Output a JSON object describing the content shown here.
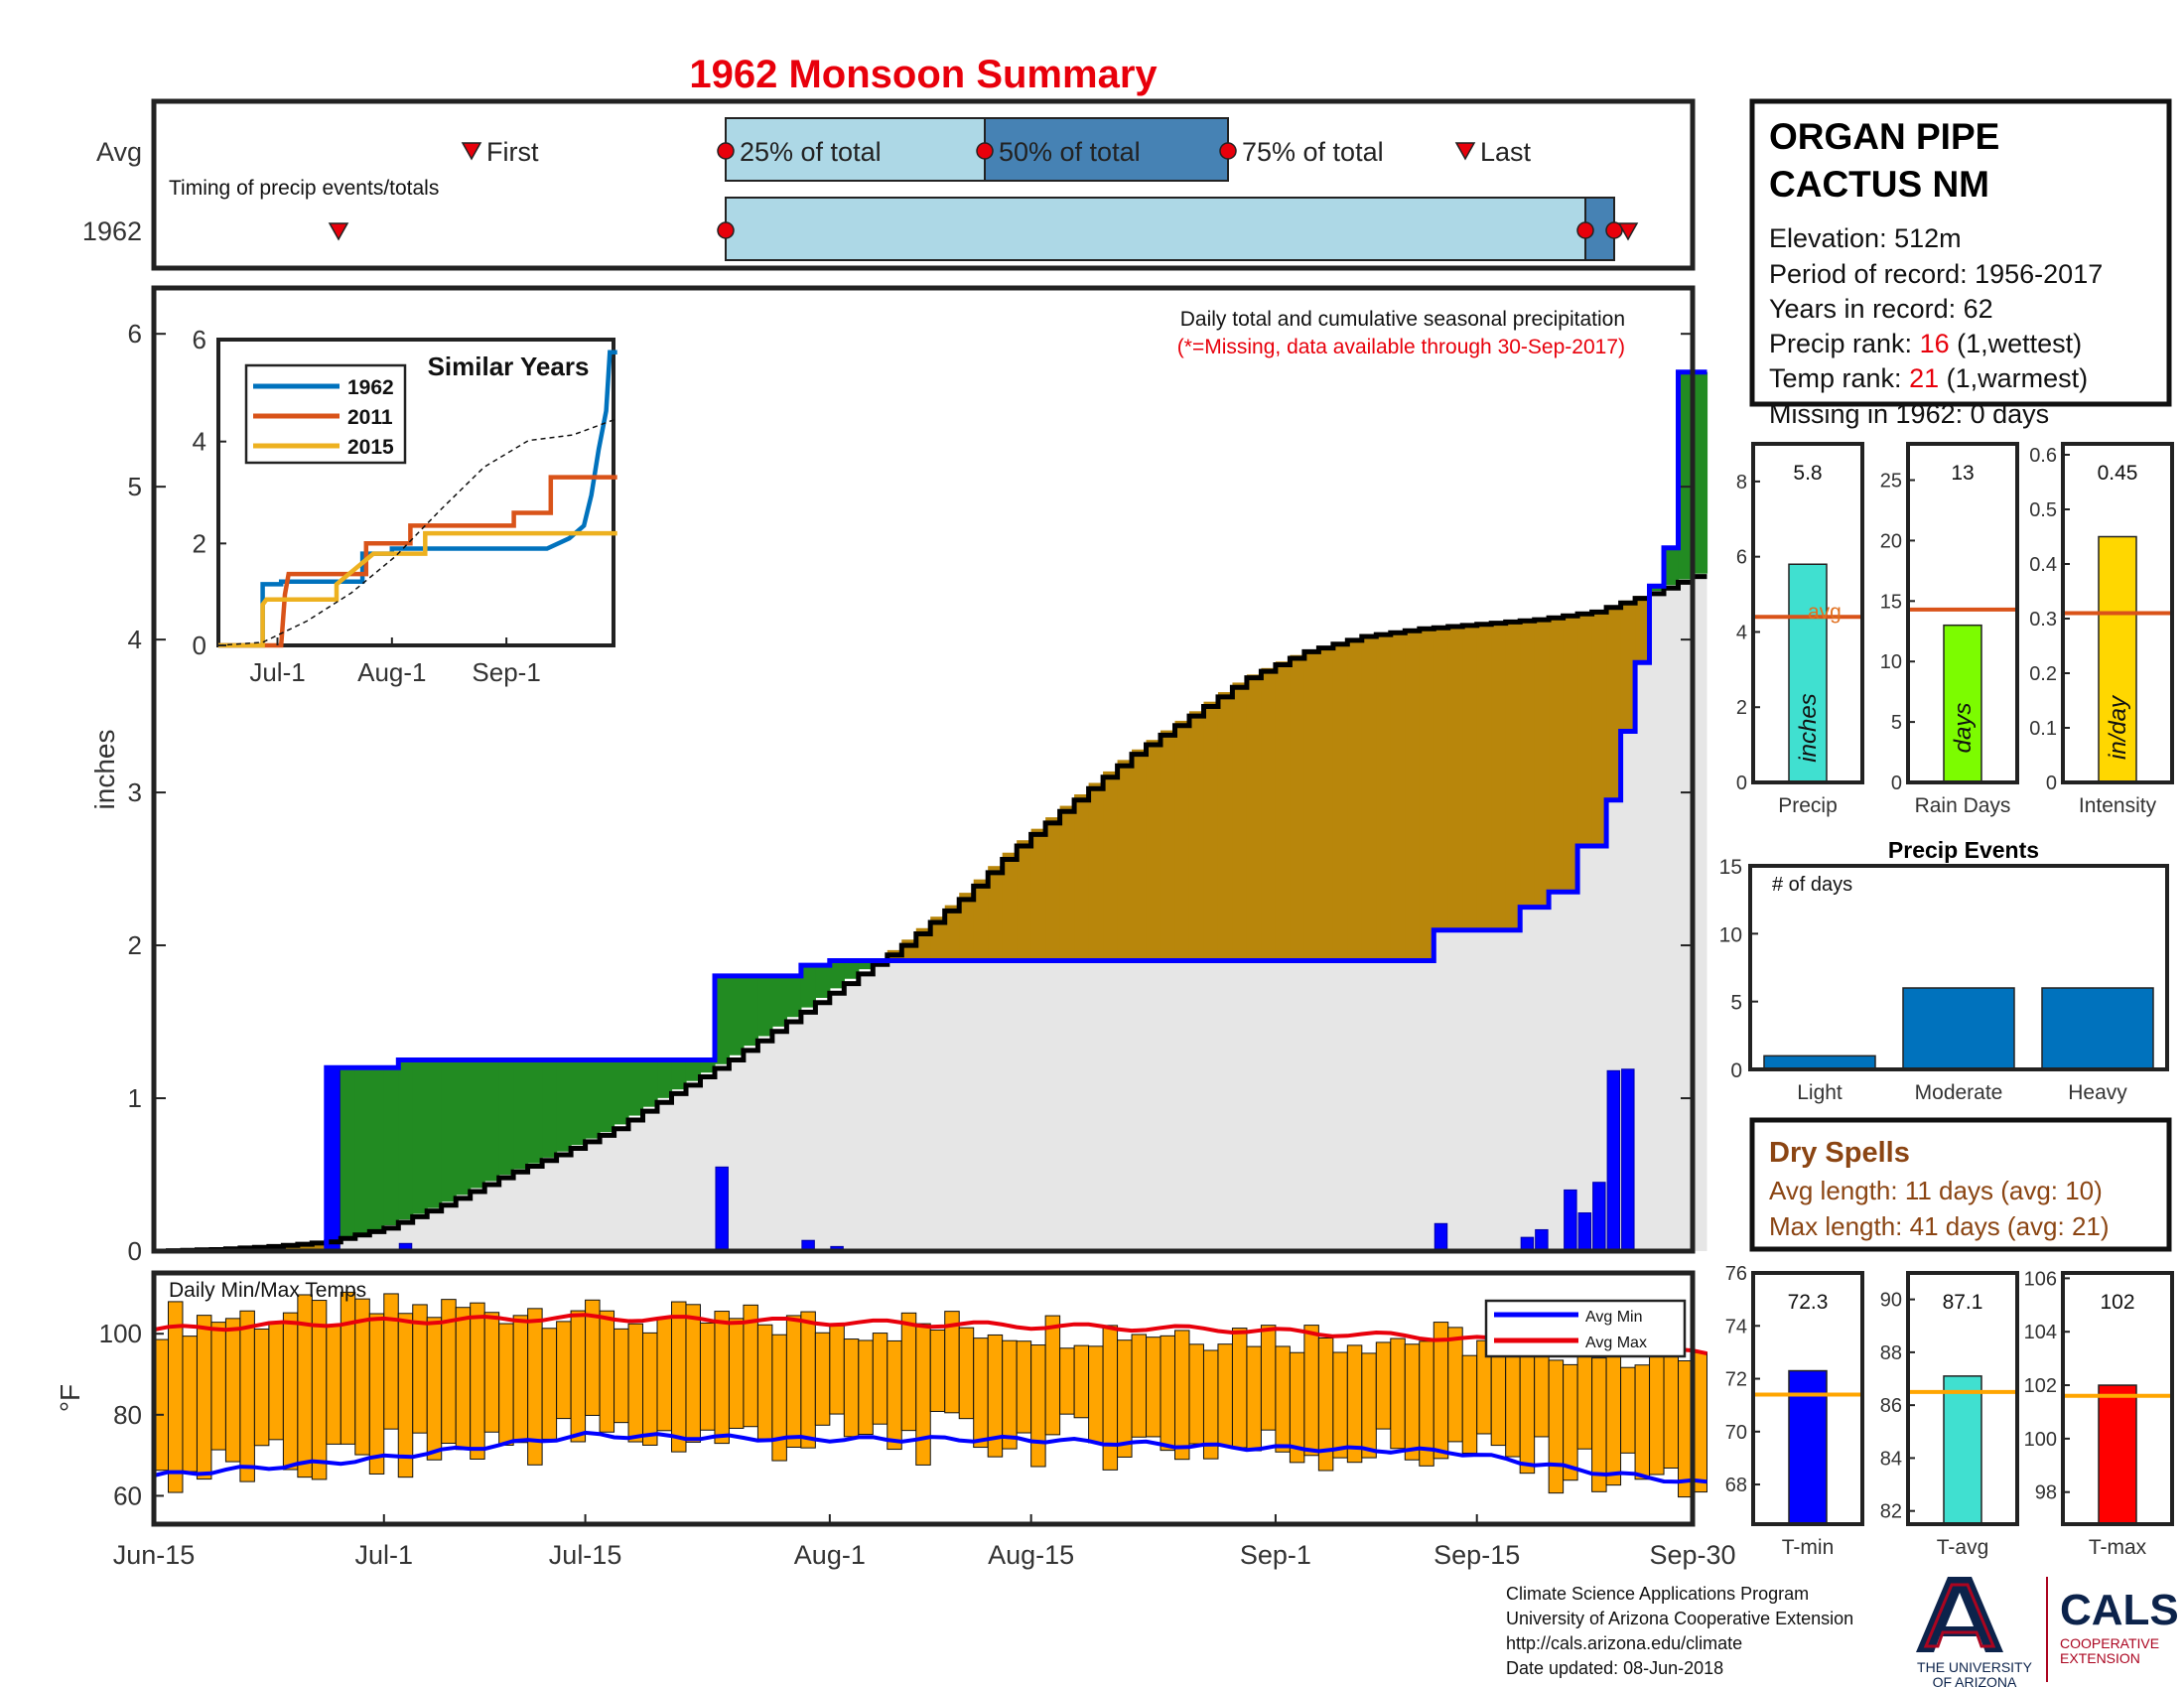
{
  "title": "1962 Monsoon Summary",
  "station": {
    "name_line1": "ORGAN PIPE",
    "name_line2": "CACTUS NM",
    "elevation": "Elevation: 512m",
    "period": "Period of record: 1956-2017",
    "years": "Years in record: 62",
    "precip_rank_label": "Precip rank: ",
    "precip_rank_value": "16",
    "precip_rank_note": " (1,wettest)",
    "temp_rank_label": "Temp rank: ",
    "temp_rank_value": "21",
    "temp_rank_note": " (1,warmest)",
    "missing": "Missing in 1962: 0 days"
  },
  "timing": {
    "row_avg": "Avg",
    "row_year": "1962",
    "caption": "Timing of precip events/totals",
    "first": "First",
    "p25": "25% of total",
    "p50": "50% of total",
    "p75": "75% of total",
    "last": "Last"
  },
  "main": {
    "ylabel": "inches",
    "note1": "Daily total and cumulative seasonal precipitation",
    "note2": "(*=Missing, data available through 30-Sep-2017)"
  },
  "inset": {
    "title": "Similar Years",
    "legend": [
      "1962",
      "2011",
      "2015"
    ]
  },
  "temps": {
    "title": "Daily Min/Max Temps",
    "ylabel": "°F",
    "legend_min": "Avg Min",
    "legend_max": "Avg Max"
  },
  "bars": {
    "precip": {
      "value_label": "5.8",
      "inner": "inches",
      "xlabel": "Precip",
      "avg_label": "avg"
    },
    "raindays": {
      "value_label": "13",
      "inner": "days",
      "xlabel": "Rain Days"
    },
    "intensity": {
      "value_label": "0.45",
      "inner": "in/day",
      "xlabel": "Intensity"
    }
  },
  "events": {
    "title": "Precip Events",
    "ylabel": "# of days"
  },
  "dry": {
    "title": "Dry Spells",
    "avg": "Avg length: 11 days (avg: 10)",
    "max": "Max length: 41 days (avg: 21)"
  },
  "tbars": {
    "tmin": {
      "value_label": "72.3",
      "xlabel": "T-min"
    },
    "tavg": {
      "value_label": "87.1",
      "xlabel": "T-avg"
    },
    "tmax": {
      "value_label": "102",
      "xlabel": "T-max"
    }
  },
  "footer": {
    "line1": "Climate Science Applications Program",
    "line2": "University of Arizona Cooperative Extension",
    "line3": "http://cals.arizona.edu/climate",
    "line4": " Date updated: 08-Jun-2018",
    "logo_ua_line1": "THE UNIVERSITY",
    "logo_ua_line2": "OF ARIZONA",
    "logo_cals": "CALS",
    "logo_cals_sub1": "COOPERATIVE",
    "logo_cals_sub2": "EXTENSION"
  },
  "colors": {
    "title_red": "#e8000b",
    "green_fill": "#228b22",
    "brown_fill": "#b8860b",
    "gray_fill": "#e6e6e6",
    "blue_line": "#0000ff",
    "orange_avg": "#d95319",
    "bar_blue": "#0072bd",
    "light_blue": "#add8e6",
    "steel_blue": "#4682b4",
    "temp_orange": "#ffa500",
    "dry_brown": "#8b4513"
  },
  "chart_data": [
    {
      "id": "timing",
      "type": "bar",
      "x_axis": "day of season (Jun-15 to Sep-30)",
      "avg": {
        "first": "Jul-6",
        "p25": "Jul-26",
        "p50": "Aug-10",
        "p75": "Aug-26",
        "last": "Sep-14"
      },
      "year": {
        "first": "Jun-26",
        "p25": "Jul-26",
        "p50": "Sep-25",
        "p75": "Sep-27",
        "last": "Sep-28"
      }
    },
    {
      "id": "main-precip",
      "type": "area",
      "xlabel": "",
      "ylabel": "inches",
      "ylim": [
        0,
        6.3
      ],
      "x_ticks": [
        "Jun-15",
        "Jul-1",
        "Jul-15",
        "Aug-1",
        "Aug-15",
        "Sep-1",
        "Sep-15",
        "Sep-30"
      ],
      "y_ticks": [
        0,
        1,
        2,
        3,
        4,
        5,
        6
      ],
      "series": [
        {
          "name": "cumulative 1962",
          "points": [
            [
              0,
              0
            ],
            [
              12,
              0
            ],
            [
              12,
              1.2
            ],
            [
              17,
              1.2
            ],
            [
              17,
              1.25
            ],
            [
              39,
              1.25
            ],
            [
              39,
              1.8
            ],
            [
              45,
              1.8
            ],
            [
              45,
              1.87
            ],
            [
              47,
              1.87
            ],
            [
              47,
              1.9
            ],
            [
              89,
              1.9
            ],
            [
              89,
              2.1
            ],
            [
              95,
              2.1
            ],
            [
              95,
              2.25
            ],
            [
              97,
              2.25
            ],
            [
              97,
              2.35
            ],
            [
              99,
              2.35
            ],
            [
              99,
              2.65
            ],
            [
              101,
              2.65
            ],
            [
              101,
              2.95
            ],
            [
              102,
              2.95
            ],
            [
              102,
              3.4
            ],
            [
              103,
              3.4
            ],
            [
              103,
              3.85
            ],
            [
              104,
              3.85
            ],
            [
              104,
              4.35
            ],
            [
              105,
              4.35
            ],
            [
              105,
              4.6
            ],
            [
              106,
              4.6
            ],
            [
              106,
              5.75
            ],
            [
              108,
              5.75
            ]
          ]
        },
        {
          "name": "average cumulative",
          "points": [
            [
              0,
              0
            ],
            [
              4,
              0.01
            ],
            [
              8,
              0.03
            ],
            [
              12,
              0.06
            ],
            [
              16,
              0.15
            ],
            [
              20,
              0.3
            ],
            [
              24,
              0.48
            ],
            [
              28,
              0.63
            ],
            [
              32,
              0.8
            ],
            [
              36,
              1.03
            ],
            [
              40,
              1.25
            ],
            [
              44,
              1.5
            ],
            [
              48,
              1.75
            ],
            [
              52,
              2.0
            ],
            [
              56,
              2.3
            ],
            [
              60,
              2.65
            ],
            [
              64,
              2.95
            ],
            [
              68,
              3.25
            ],
            [
              72,
              3.5
            ],
            [
              76,
              3.75
            ],
            [
              80,
              3.92
            ],
            [
              84,
              4.02
            ],
            [
              88,
              4.07
            ],
            [
              92,
              4.1
            ],
            [
              96,
              4.13
            ],
            [
              100,
              4.18
            ],
            [
              104,
              4.3
            ],
            [
              108,
              4.45
            ]
          ]
        },
        {
          "name": "daily 1962",
          "points": [
            [
              12,
              1.2
            ],
            [
              17,
              0.05
            ],
            [
              39,
              0.55
            ],
            [
              45,
              0.07
            ],
            [
              47,
              0.03
            ],
            [
              89,
              0.18
            ],
            [
              95,
              0.09
            ],
            [
              96,
              0.14
            ],
            [
              98,
              0.4
            ],
            [
              99,
              0.25
            ],
            [
              100,
              0.45
            ],
            [
              101,
              1.18
            ],
            [
              102,
              1.19
            ]
          ]
        }
      ]
    },
    {
      "id": "similar-years",
      "type": "line",
      "title": "Similar Years",
      "x_ticks": [
        "Jul-1",
        "Aug-1",
        "Sep-1"
      ],
      "y_ticks": [
        0,
        2,
        4,
        6
      ],
      "ylim": [
        0,
        6
      ],
      "series": [
        {
          "name": "1962",
          "points": [
            [
              0,
              0
            ],
            [
              12,
              0
            ],
            [
              12,
              1.2
            ],
            [
              17,
              1.2
            ],
            [
              17,
              1.25
            ],
            [
              39,
              1.25
            ],
            [
              39,
              1.8
            ],
            [
              47,
              1.8
            ],
            [
              47,
              1.9
            ],
            [
              89,
              1.9
            ],
            [
              95,
              2.1
            ],
            [
              99,
              2.35
            ],
            [
              101,
              2.95
            ],
            [
              103,
              3.85
            ],
            [
              105,
              4.6
            ],
            [
              106,
              5.75
            ],
            [
              108,
              5.75
            ]
          ]
        },
        {
          "name": "2011",
          "points": [
            [
              0,
              0
            ],
            [
              17,
              0
            ],
            [
              18,
              1.0
            ],
            [
              19,
              1.4
            ],
            [
              40,
              1.4
            ],
            [
              40,
              2.0
            ],
            [
              52,
              2.0
            ],
            [
              52,
              2.35
            ],
            [
              80,
              2.35
            ],
            [
              80,
              2.6
            ],
            [
              90,
              2.6
            ],
            [
              90,
              3.3
            ],
            [
              108,
              3.3
            ]
          ]
        },
        {
          "name": "2015",
          "points": [
            [
              0,
              0
            ],
            [
              12,
              0
            ],
            [
              12,
              0.8
            ],
            [
              13,
              0.9
            ],
            [
              32,
              0.9
            ],
            [
              32,
              1.2
            ],
            [
              42,
              1.8
            ],
            [
              56,
              1.8
            ],
            [
              56,
              2.2
            ],
            [
              108,
              2.2
            ]
          ]
        },
        {
          "name": "average",
          "points": [
            [
              0,
              0
            ],
            [
              12,
              0.06
            ],
            [
              24,
              0.48
            ],
            [
              36,
              1.03
            ],
            [
              48,
              1.75
            ],
            [
              60,
              2.65
            ],
            [
              72,
              3.5
            ],
            [
              84,
              4.02
            ],
            [
              96,
              4.13
            ],
            [
              108,
              4.45
            ]
          ]
        }
      ]
    },
    {
      "id": "temps",
      "type": "bar",
      "title": "Daily Min/Max Temps",
      "ylabel": "°F",
      "ylim": [
        53,
        115
      ],
      "y_ticks": [
        60,
        80,
        100
      ],
      "avg_max": [
        [
          0,
          101
        ],
        [
          15,
          103
        ],
        [
          30,
          104
        ],
        [
          45,
          103
        ],
        [
          60,
          102
        ],
        [
          75,
          101
        ],
        [
          90,
          99
        ],
        [
          100,
          97
        ],
        [
          108,
          95
        ]
      ],
      "avg_min": [
        [
          0,
          65
        ],
        [
          15,
          69
        ],
        [
          30,
          75
        ],
        [
          45,
          74
        ],
        [
          60,
          74
        ],
        [
          75,
          72
        ],
        [
          90,
          71
        ],
        [
          100,
          66
        ],
        [
          108,
          63
        ]
      ]
    },
    {
      "id": "precip-total",
      "type": "bar",
      "categories": [
        "Precip"
      ],
      "values": [
        5.8
      ],
      "avg": 4.4,
      "ylim": [
        0,
        9
      ],
      "y_ticks": [
        0,
        2,
        4,
        6,
        8
      ]
    },
    {
      "id": "rain-days",
      "type": "bar",
      "categories": [
        "Rain Days"
      ],
      "values": [
        13
      ],
      "avg": 14.3,
      "ylim": [
        0,
        28
      ],
      "y_ticks": [
        0,
        5,
        10,
        15,
        20,
        25
      ]
    },
    {
      "id": "intensity",
      "type": "bar",
      "categories": [
        "Intensity"
      ],
      "values": [
        0.45
      ],
      "avg": 0.31,
      "ylim": [
        0,
        0.62
      ],
      "y_ticks": [
        0,
        0.1,
        0.2,
        0.3,
        0.4,
        0.5,
        0.6
      ]
    },
    {
      "id": "precip-events",
      "type": "bar",
      "title": "Precip Events",
      "categories": [
        "Light",
        "Moderate",
        "Heavy"
      ],
      "values": [
        1,
        6,
        6
      ],
      "ylim": [
        0,
        15
      ],
      "y_ticks": [
        0,
        5,
        10,
        15
      ]
    },
    {
      "id": "tmin",
      "type": "bar",
      "categories": [
        "T-min"
      ],
      "values": [
        72.3
      ],
      "avg": 71.4,
      "ylim": [
        66.5,
        76
      ],
      "y_ticks": [
        68,
        70,
        72,
        74,
        76
      ]
    },
    {
      "id": "tavg",
      "type": "bar",
      "categories": [
        "T-avg"
      ],
      "values": [
        87.1
      ],
      "avg": 86.5,
      "ylim": [
        81.5,
        91
      ],
      "y_ticks": [
        82,
        84,
        86,
        88,
        90
      ]
    },
    {
      "id": "tmax",
      "type": "bar",
      "categories": [
        "T-max"
      ],
      "values": [
        102
      ],
      "avg": 101.6,
      "ylim": [
        96.8,
        106.2
      ],
      "y_ticks": [
        98,
        100,
        102,
        104,
        106
      ]
    }
  ]
}
